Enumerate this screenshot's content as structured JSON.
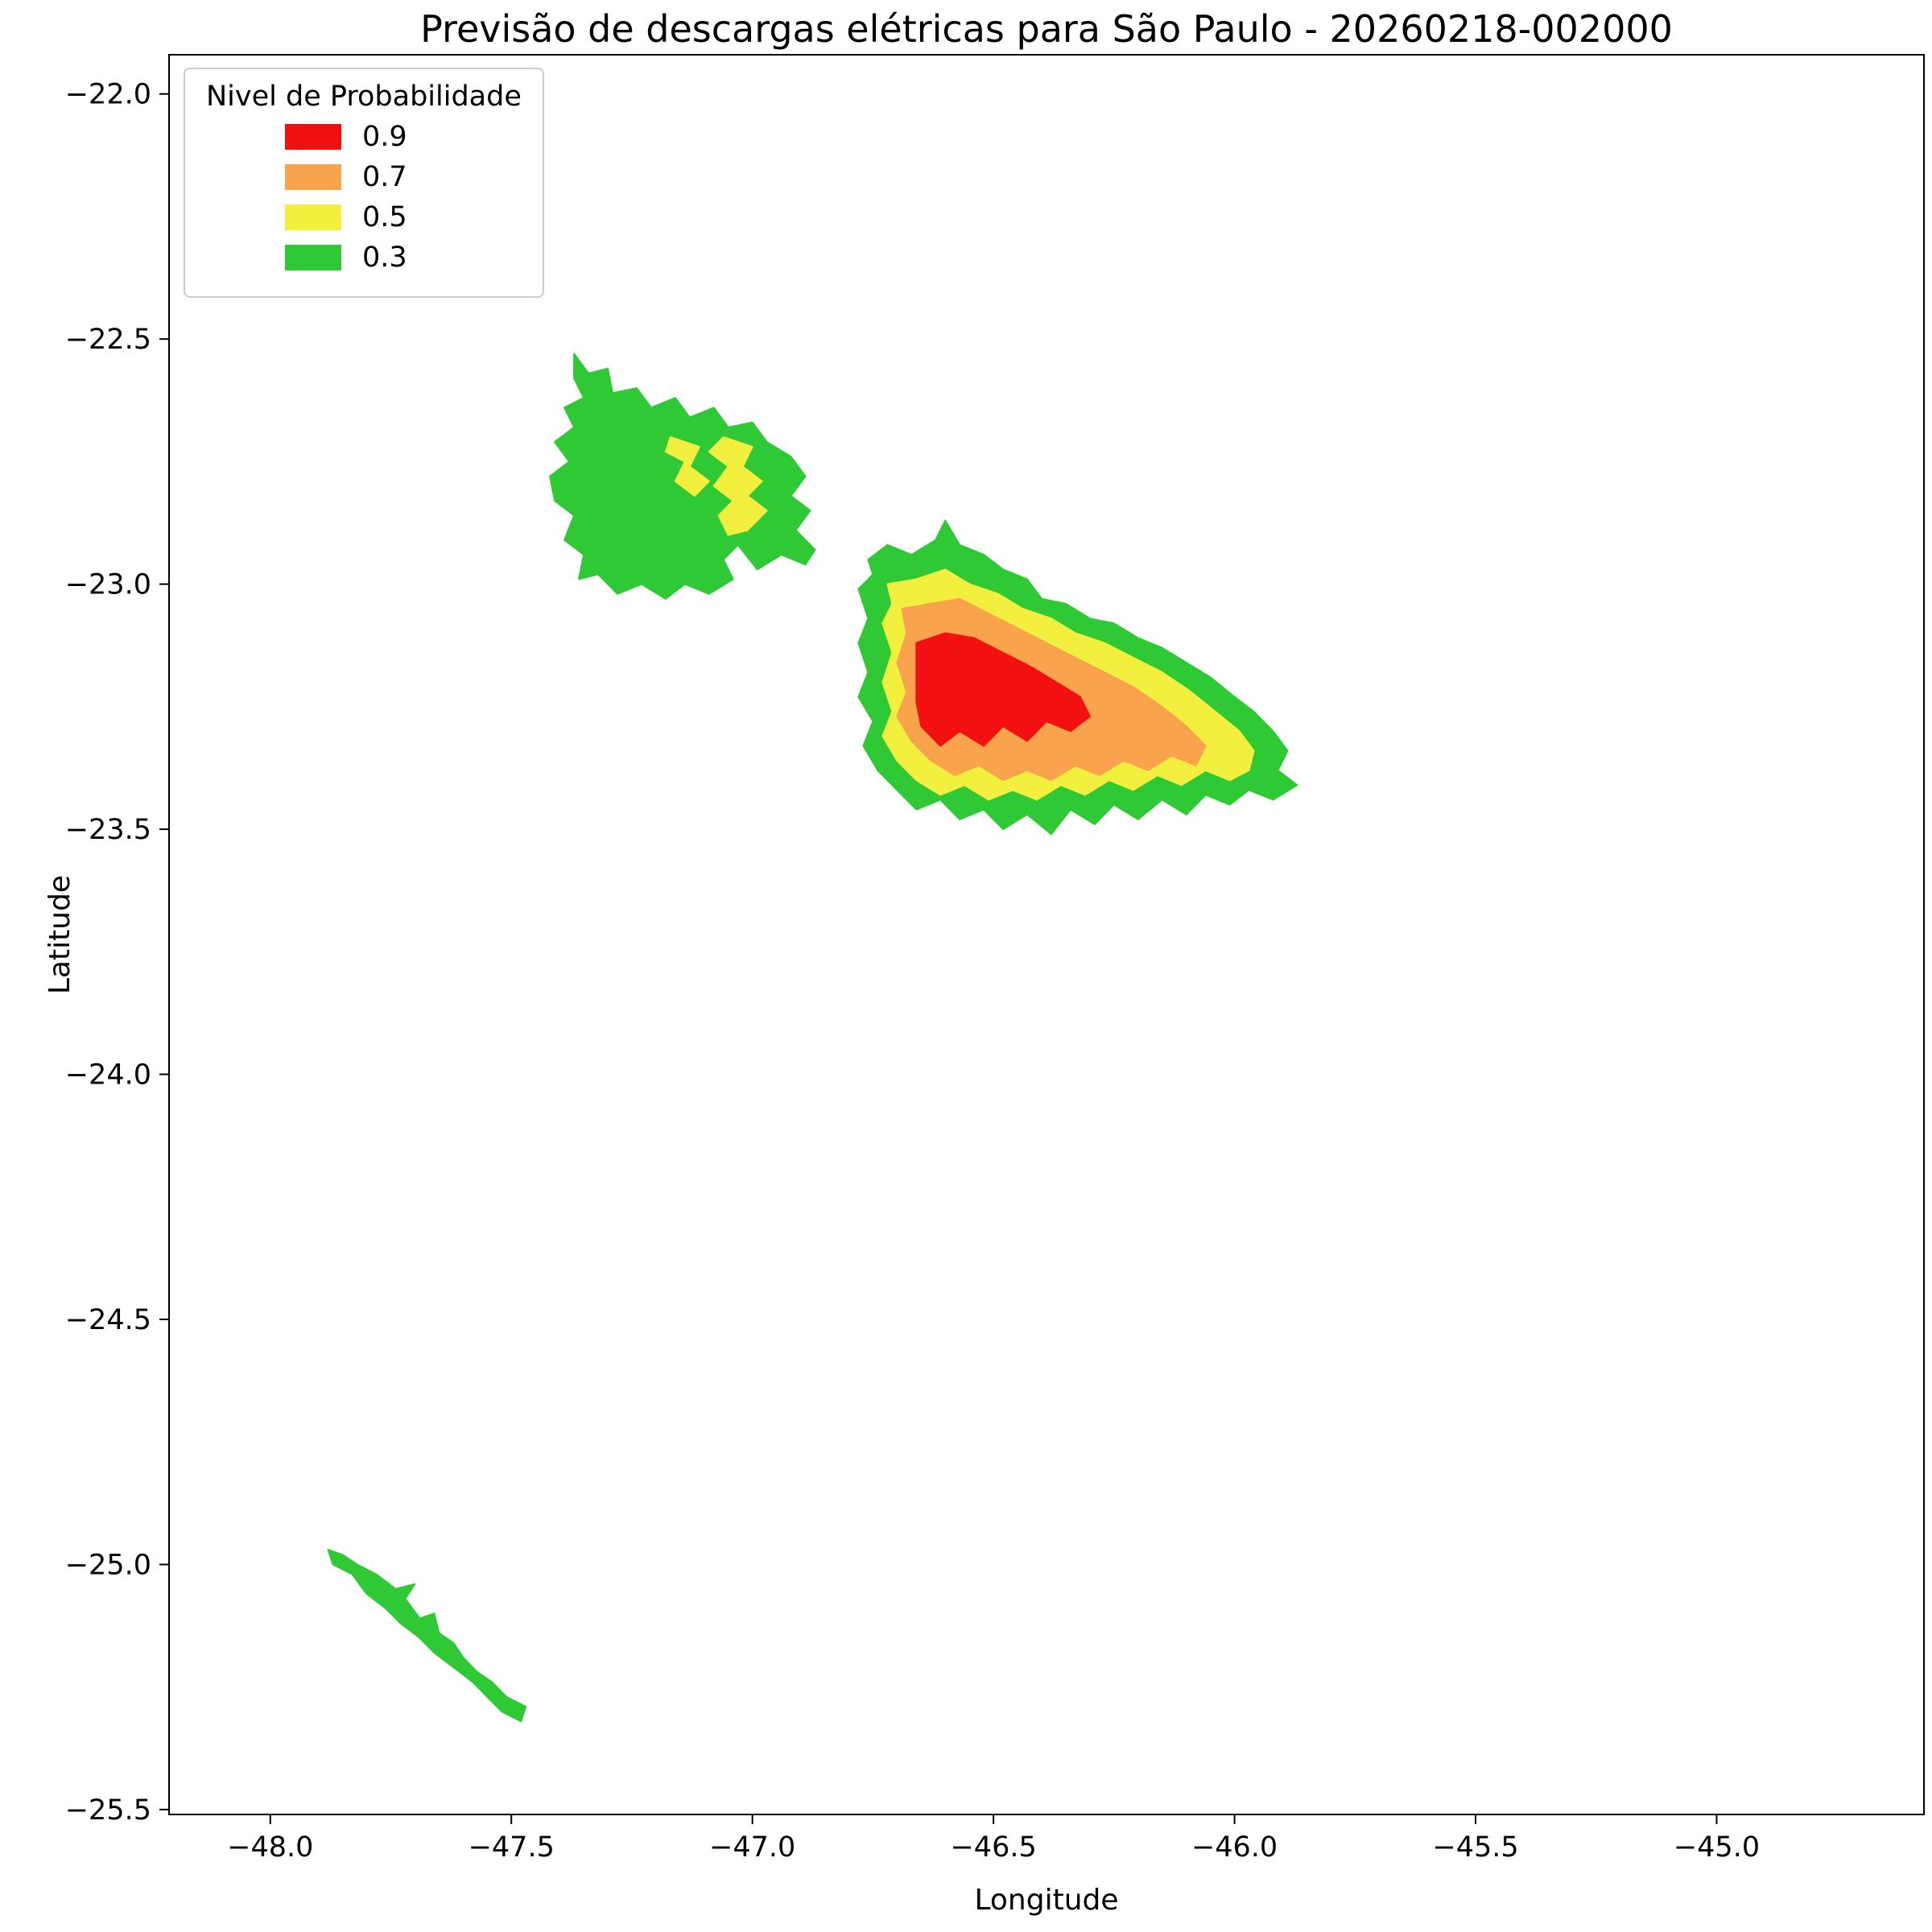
{
  "title": "Previsão de descargas elétricas para São Paulo - 20260218-002000",
  "axes": {
    "xlabel": "Longitude",
    "ylabel": "Latitude",
    "xticks": [
      {
        "value": -48.0,
        "label": "−48.0"
      },
      {
        "value": -47.5,
        "label": "−47.5"
      },
      {
        "value": -47.0,
        "label": "−47.0"
      },
      {
        "value": -46.5,
        "label": "−46.5"
      },
      {
        "value": -46.0,
        "label": "−46.0"
      },
      {
        "value": -45.5,
        "label": "−45.5"
      },
      {
        "value": -45.0,
        "label": "−45.0"
      }
    ],
    "yticks": [
      {
        "value": -22.0,
        "label": "−22.0"
      },
      {
        "value": -22.5,
        "label": "−22.5"
      },
      {
        "value": -23.0,
        "label": "−23.0"
      },
      {
        "value": -23.5,
        "label": "−23.5"
      },
      {
        "value": -24.0,
        "label": "−24.0"
      },
      {
        "value": -24.5,
        "label": "−24.5"
      },
      {
        "value": -25.0,
        "label": "−25.0"
      },
      {
        "value": -25.5,
        "label": "−25.5"
      }
    ]
  },
  "legend": {
    "title": "Nivel de Probabilidade",
    "items": [
      {
        "label": "0.9",
        "color": "#f21010"
      },
      {
        "label": "0.7",
        "color": "#f9a34c"
      },
      {
        "label": "0.5",
        "color": "#f2ef3e"
      },
      {
        "label": "0.3",
        "color": "#30c936"
      }
    ]
  },
  "chart_data": {
    "type": "filled_contour_map",
    "title": "Previsão de descargas elétricas para São Paulo - 20260218-002000",
    "xlabel": "Longitude",
    "ylabel": "Latitude",
    "xlim": [
      -48.21,
      -44.57
    ],
    "ylim": [
      -25.51,
      -21.92
    ],
    "grid": false,
    "legend_position": "upper left",
    "levels": [
      {
        "probability": 0.9,
        "color": "#f21010"
      },
      {
        "probability": 0.7,
        "color": "#f9a34c"
      },
      {
        "probability": 0.5,
        "color": "#f2ef3e"
      },
      {
        "probability": 0.3,
        "color": "#30c936"
      }
    ],
    "regions": [
      {
        "name": "northwest-cluster-p30",
        "probability": 0.3,
        "polygon": [
          [
            -47.37,
            -22.53
          ],
          [
            -47.34,
            -22.57
          ],
          [
            -47.3,
            -22.56
          ],
          [
            -47.29,
            -22.61
          ],
          [
            -47.24,
            -22.6
          ],
          [
            -47.21,
            -22.64
          ],
          [
            -47.16,
            -22.62
          ],
          [
            -47.13,
            -22.66
          ],
          [
            -47.08,
            -22.64
          ],
          [
            -47.05,
            -22.68
          ],
          [
            -47.0,
            -22.67
          ],
          [
            -46.97,
            -22.71
          ],
          [
            -46.92,
            -22.74
          ],
          [
            -46.89,
            -22.78
          ],
          [
            -46.92,
            -22.82
          ],
          [
            -46.88,
            -22.85
          ],
          [
            -46.91,
            -22.89
          ],
          [
            -46.87,
            -22.93
          ],
          [
            -46.89,
            -22.96
          ],
          [
            -46.94,
            -22.94
          ],
          [
            -46.99,
            -22.97
          ],
          [
            -47.03,
            -22.92
          ],
          [
            -47.06,
            -22.95
          ],
          [
            -47.04,
            -22.99
          ],
          [
            -47.09,
            -23.02
          ],
          [
            -47.14,
            -23.0
          ],
          [
            -47.18,
            -23.03
          ],
          [
            -47.23,
            -23.0
          ],
          [
            -47.28,
            -23.02
          ],
          [
            -47.32,
            -22.98
          ],
          [
            -47.36,
            -22.99
          ],
          [
            -47.35,
            -22.94
          ],
          [
            -47.39,
            -22.91
          ],
          [
            -47.37,
            -22.86
          ],
          [
            -47.41,
            -22.83
          ],
          [
            -47.42,
            -22.78
          ],
          [
            -47.38,
            -22.75
          ],
          [
            -47.41,
            -22.71
          ],
          [
            -47.37,
            -22.68
          ],
          [
            -47.39,
            -22.64
          ],
          [
            -47.35,
            -22.62
          ],
          [
            -47.37,
            -22.58
          ]
        ]
      },
      {
        "name": "northwest-cluster-p50-west",
        "probability": 0.5,
        "polygon": [
          [
            -47.17,
            -22.7
          ],
          [
            -47.11,
            -22.72
          ],
          [
            -47.13,
            -22.76
          ],
          [
            -47.09,
            -22.79
          ],
          [
            -47.12,
            -22.82
          ],
          [
            -47.16,
            -22.79
          ],
          [
            -47.14,
            -22.75
          ],
          [
            -47.18,
            -22.73
          ]
        ]
      },
      {
        "name": "northwest-cluster-p50-east",
        "probability": 0.5,
        "polygon": [
          [
            -47.06,
            -22.7
          ],
          [
            -47.0,
            -22.72
          ],
          [
            -47.02,
            -22.76
          ],
          [
            -46.98,
            -22.79
          ],
          [
            -47.01,
            -22.82
          ],
          [
            -46.97,
            -22.85
          ],
          [
            -47.01,
            -22.89
          ],
          [
            -47.05,
            -22.9
          ],
          [
            -47.07,
            -22.86
          ],
          [
            -47.04,
            -22.83
          ],
          [
            -47.08,
            -22.8
          ],
          [
            -47.05,
            -22.76
          ],
          [
            -47.09,
            -22.73
          ]
        ]
      },
      {
        "name": "central-cluster-p30",
        "probability": 0.3,
        "polygon": [
          [
            -46.76,
            -22.95
          ],
          [
            -46.72,
            -22.92
          ],
          [
            -46.67,
            -22.94
          ],
          [
            -46.62,
            -22.91
          ],
          [
            -46.6,
            -22.87
          ],
          [
            -46.57,
            -22.92
          ],
          [
            -46.52,
            -22.94
          ],
          [
            -46.48,
            -22.97
          ],
          [
            -46.43,
            -22.99
          ],
          [
            -46.4,
            -23.03
          ],
          [
            -46.35,
            -23.04
          ],
          [
            -46.3,
            -23.07
          ],
          [
            -46.25,
            -23.08
          ],
          [
            -46.2,
            -23.11
          ],
          [
            -46.15,
            -23.13
          ],
          [
            -46.1,
            -23.16
          ],
          [
            -46.05,
            -23.19
          ],
          [
            -46.0,
            -23.23
          ],
          [
            -45.96,
            -23.26
          ],
          [
            -45.92,
            -23.3
          ],
          [
            -45.89,
            -23.34
          ],
          [
            -45.91,
            -23.38
          ],
          [
            -45.87,
            -23.41
          ],
          [
            -45.92,
            -23.44
          ],
          [
            -45.97,
            -23.42
          ],
          [
            -46.01,
            -23.45
          ],
          [
            -46.06,
            -23.43
          ],
          [
            -46.1,
            -23.47
          ],
          [
            -46.15,
            -23.44
          ],
          [
            -46.2,
            -23.48
          ],
          [
            -46.25,
            -23.45
          ],
          [
            -46.29,
            -23.49
          ],
          [
            -46.34,
            -23.46
          ],
          [
            -46.38,
            -23.51
          ],
          [
            -46.43,
            -23.47
          ],
          [
            -46.48,
            -23.5
          ],
          [
            -46.52,
            -23.46
          ],
          [
            -46.57,
            -23.48
          ],
          [
            -46.61,
            -23.44
          ],
          [
            -46.66,
            -23.46
          ],
          [
            -46.7,
            -23.42
          ],
          [
            -46.74,
            -23.38
          ],
          [
            -46.77,
            -23.33
          ],
          [
            -46.75,
            -23.28
          ],
          [
            -46.78,
            -23.23
          ],
          [
            -46.76,
            -23.18
          ],
          [
            -46.78,
            -23.12
          ],
          [
            -46.76,
            -23.07
          ],
          [
            -46.78,
            -23.01
          ],
          [
            -46.75,
            -22.98
          ]
        ]
      },
      {
        "name": "central-cluster-p50",
        "probability": 0.5,
        "polygon": [
          [
            -46.72,
            -23.0
          ],
          [
            -46.66,
            -22.99
          ],
          [
            -46.6,
            -22.97
          ],
          [
            -46.55,
            -23.0
          ],
          [
            -46.49,
            -23.02
          ],
          [
            -46.44,
            -23.05
          ],
          [
            -46.38,
            -23.07
          ],
          [
            -46.33,
            -23.1
          ],
          [
            -46.27,
            -23.12
          ],
          [
            -46.21,
            -23.15
          ],
          [
            -46.15,
            -23.18
          ],
          [
            -46.09,
            -23.22
          ],
          [
            -46.04,
            -23.26
          ],
          [
            -45.99,
            -23.3
          ],
          [
            -45.96,
            -23.34
          ],
          [
            -45.97,
            -23.38
          ],
          [
            -46.01,
            -23.4
          ],
          [
            -46.06,
            -23.38
          ],
          [
            -46.11,
            -23.41
          ],
          [
            -46.16,
            -23.39
          ],
          [
            -46.21,
            -23.42
          ],
          [
            -46.26,
            -23.4
          ],
          [
            -46.31,
            -23.43
          ],
          [
            -46.36,
            -23.41
          ],
          [
            -46.41,
            -23.44
          ],
          [
            -46.46,
            -23.42
          ],
          [
            -46.51,
            -23.44
          ],
          [
            -46.56,
            -23.41
          ],
          [
            -46.61,
            -23.43
          ],
          [
            -46.66,
            -23.4
          ],
          [
            -46.7,
            -23.36
          ],
          [
            -46.73,
            -23.31
          ],
          [
            -46.71,
            -23.26
          ],
          [
            -46.73,
            -23.2
          ],
          [
            -46.71,
            -23.14
          ],
          [
            -46.73,
            -23.08
          ],
          [
            -46.71,
            -23.04
          ]
        ]
      },
      {
        "name": "central-cluster-p70",
        "probability": 0.7,
        "polygon": [
          [
            -46.69,
            -23.05
          ],
          [
            -46.63,
            -23.04
          ],
          [
            -46.57,
            -23.03
          ],
          [
            -46.51,
            -23.06
          ],
          [
            -46.45,
            -23.09
          ],
          [
            -46.39,
            -23.12
          ],
          [
            -46.33,
            -23.15
          ],
          [
            -46.27,
            -23.18
          ],
          [
            -46.21,
            -23.21
          ],
          [
            -46.15,
            -23.25
          ],
          [
            -46.1,
            -23.29
          ],
          [
            -46.06,
            -23.33
          ],
          [
            -46.08,
            -23.37
          ],
          [
            -46.13,
            -23.35
          ],
          [
            -46.18,
            -23.38
          ],
          [
            -46.23,
            -23.36
          ],
          [
            -46.28,
            -23.39
          ],
          [
            -46.33,
            -23.37
          ],
          [
            -46.38,
            -23.4
          ],
          [
            -46.43,
            -23.38
          ],
          [
            -46.48,
            -23.4
          ],
          [
            -46.53,
            -23.37
          ],
          [
            -46.58,
            -23.39
          ],
          [
            -46.63,
            -23.36
          ],
          [
            -46.67,
            -23.32
          ],
          [
            -46.7,
            -23.27
          ],
          [
            -46.68,
            -23.22
          ],
          [
            -46.7,
            -23.16
          ],
          [
            -46.68,
            -23.1
          ]
        ]
      },
      {
        "name": "central-cluster-p90",
        "probability": 0.9,
        "polygon": [
          [
            -46.66,
            -23.12
          ],
          [
            -46.6,
            -23.1
          ],
          [
            -46.54,
            -23.11
          ],
          [
            -46.48,
            -23.14
          ],
          [
            -46.42,
            -23.17
          ],
          [
            -46.37,
            -23.2
          ],
          [
            -46.32,
            -23.23
          ],
          [
            -46.3,
            -23.27
          ],
          [
            -46.34,
            -23.3
          ],
          [
            -46.39,
            -23.28
          ],
          [
            -46.43,
            -23.32
          ],
          [
            -46.48,
            -23.29
          ],
          [
            -46.52,
            -23.33
          ],
          [
            -46.57,
            -23.3
          ],
          [
            -46.61,
            -23.33
          ],
          [
            -46.65,
            -23.29
          ],
          [
            -46.66,
            -23.24
          ],
          [
            -46.66,
            -23.18
          ],
          [
            -46.66,
            -23.14
          ]
        ]
      },
      {
        "name": "southwest-arc-p30",
        "probability": 0.3,
        "polygon": [
          [
            -47.88,
            -24.97
          ],
          [
            -47.87,
            -25.0
          ],
          [
            -47.83,
            -25.02
          ],
          [
            -47.8,
            -25.06
          ],
          [
            -47.76,
            -25.09
          ],
          [
            -47.73,
            -25.12
          ],
          [
            -47.69,
            -25.15
          ],
          [
            -47.66,
            -25.18
          ],
          [
            -47.62,
            -25.21
          ],
          [
            -47.58,
            -25.24
          ],
          [
            -47.55,
            -25.27
          ],
          [
            -47.52,
            -25.3
          ],
          [
            -47.48,
            -25.32
          ],
          [
            -47.47,
            -25.29
          ],
          [
            -47.51,
            -25.27
          ],
          [
            -47.54,
            -25.24
          ],
          [
            -47.57,
            -25.22
          ],
          [
            -47.6,
            -25.19
          ],
          [
            -47.62,
            -25.16
          ],
          [
            -47.65,
            -25.14
          ],
          [
            -47.66,
            -25.1
          ],
          [
            -47.69,
            -25.11
          ],
          [
            -47.72,
            -25.07
          ],
          [
            -47.7,
            -25.04
          ],
          [
            -47.74,
            -25.05
          ],
          [
            -47.78,
            -25.02
          ],
          [
            -47.82,
            -25.0
          ],
          [
            -47.85,
            -24.98
          ]
        ]
      }
    ]
  }
}
